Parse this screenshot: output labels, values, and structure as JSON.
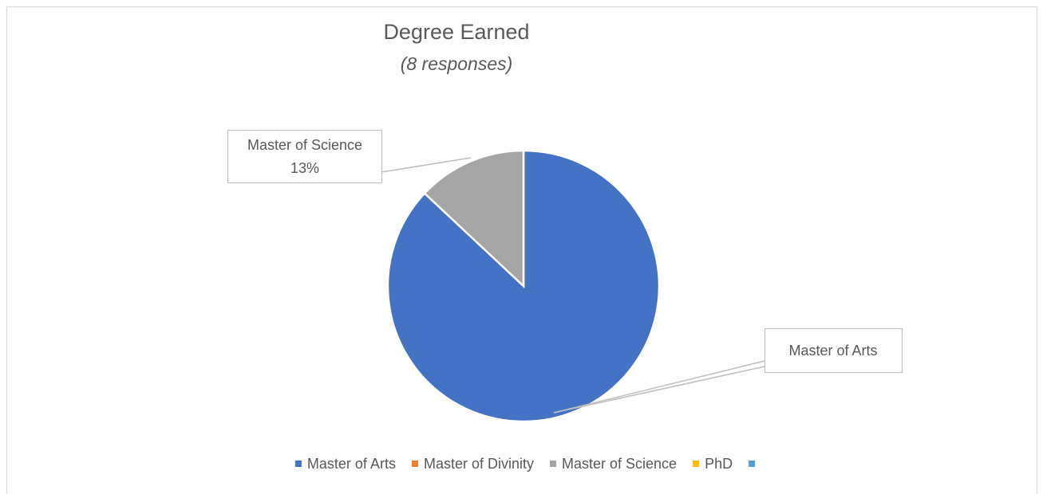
{
  "chart_data": {
    "type": "pie",
    "title": "Degree Earned",
    "subtitle": "(8 responses)",
    "categories": [
      "Master of Arts",
      "Master of Divinity",
      "Master of Science",
      "PhD",
      null
    ],
    "values": [
      87,
      0,
      13,
      0,
      0
    ],
    "value_labels": [
      null,
      null,
      "13%",
      null,
      null
    ],
    "colors": [
      "#4472c4",
      "#ed7d31",
      "#a5a5a5",
      "#ffc000",
      "#5b9bd5"
    ],
    "legend": "bottom"
  }
}
